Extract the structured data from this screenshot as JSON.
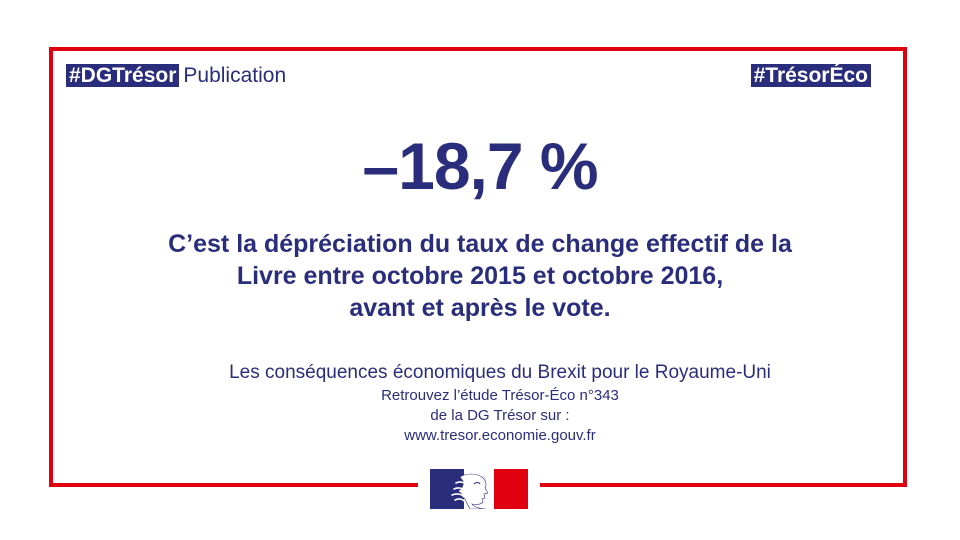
{
  "header": {
    "hashtag_left": "#DGTrésor",
    "publication_label": "Publication",
    "hashtag_right": "#TrésorÉco"
  },
  "stat": {
    "value": "–18,7 %"
  },
  "caption": {
    "lines": [
      "C’est la dépréciation du taux de change effectif de la",
      "Livre entre octobre 2015 et octobre 2016,",
      "avant et après le vote."
    ]
  },
  "study": {
    "title": "Les conséquences économiques du Brexit pour le Royaume-Uni",
    "lines": [
      "Retrouvez l’étude Trésor-Éco n°343",
      "de la DG Trésor sur :",
      "www.tresor.economie.gouv.fr"
    ]
  },
  "colors": {
    "navy": "#2a2d7b",
    "red": "#e1000f",
    "white": "#ffffff"
  },
  "icons": {
    "logo": "marianne-logo-icon"
  }
}
